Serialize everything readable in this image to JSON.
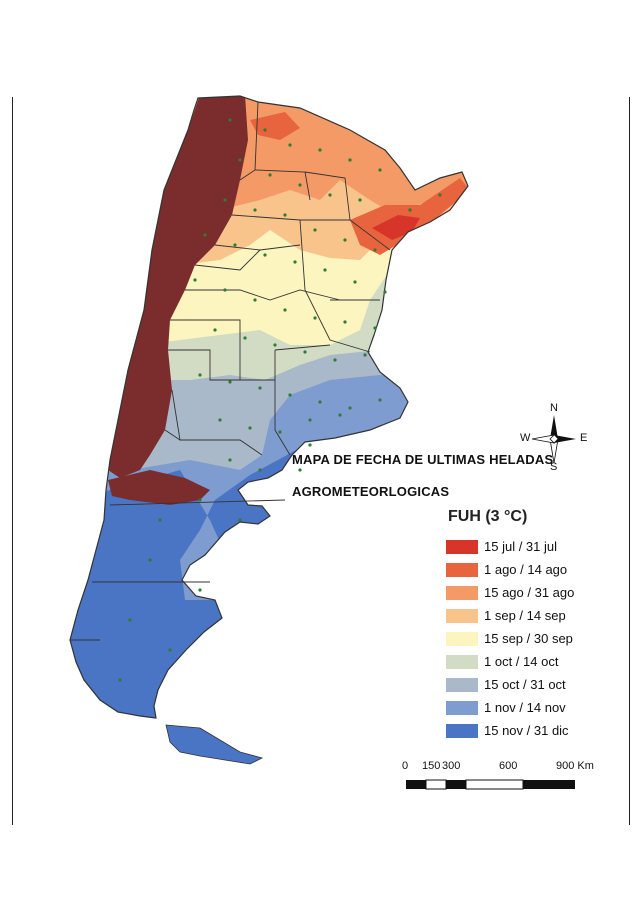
{
  "map": {
    "title_line1": "MAPA DE FECHA DE ULTIMAS HELADAS",
    "title_line2": "AGROMETEORLOGICAS"
  },
  "legend": {
    "title": "FUH (3 °C)",
    "items": [
      {
        "label": "15 jul / 31 jul",
        "color": "#d7342a"
      },
      {
        "label": "1 ago / 14 ago",
        "color": "#e8643f"
      },
      {
        "label": "15 ago / 31 ago",
        "color": "#f39a67"
      },
      {
        "label": "1 sep / 14 sep",
        "color": "#f8c48c"
      },
      {
        "label": "15 sep / 30 sep",
        "color": "#fcf5c0"
      },
      {
        "label": "1 oct / 14 oct",
        "color": "#d2dcc4"
      },
      {
        "label": "15 oct / 31 oct",
        "color": "#a9b9c9"
      },
      {
        "label": "1 nov / 14 nov",
        "color": "#7e9cd0"
      },
      {
        "label": "15 nov / 31 dic",
        "color": "#4a74c4"
      }
    ]
  },
  "compass": {
    "n": "N",
    "s": "S",
    "e": "E",
    "w": "W"
  },
  "scale_bar": {
    "ticks": [
      "0",
      "150",
      "300",
      "600",
      "900 Km"
    ]
  },
  "colors": {
    "andes_no_data": "#7b2c2c",
    "station_dot": "#2e7d32",
    "boundary": "#333333"
  }
}
